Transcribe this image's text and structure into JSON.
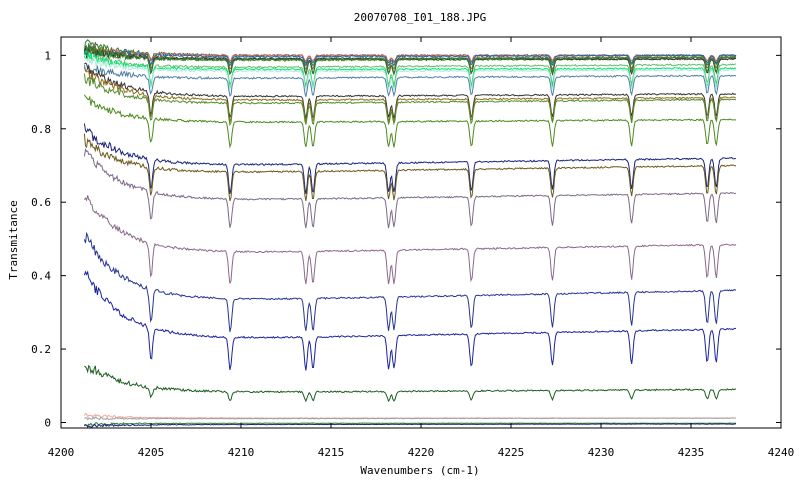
{
  "chart_data": {
    "type": "line",
    "title": "20070708_I01_188.JPG",
    "xlabel": "Wavenumbers (cm-1)",
    "ylabel": "Transmitance",
    "xlim": [
      4200,
      4240
    ],
    "ylim": [
      -0.015,
      1.05
    ],
    "x_ticks": [
      4200,
      4205,
      4210,
      4215,
      4220,
      4225,
      4230,
      4235,
      4240
    ],
    "y_ticks": [
      0,
      0.2,
      0.4,
      0.6,
      0.8,
      1
    ],
    "x_tick_labels": [
      "4200",
      "4205",
      "4210",
      "4215",
      "4220",
      "4225",
      "4230",
      "4235",
      "4240"
    ],
    "y_tick_labels": [
      "0",
      "0.2",
      "0.4",
      "0.6",
      "0.8",
      "1"
    ],
    "grid": false,
    "legend": "none",
    "x_range_of_data": [
      4201.3,
      4237.5
    ],
    "absorption_lines": [
      4205.0,
      4209.4,
      4213.6,
      4214.0,
      4218.2,
      4218.5,
      4222.8,
      4227.3,
      4231.7,
      4235.9,
      4236.4
    ],
    "series": [
      {
        "color": "#2e7d32",
        "start": 1.03,
        "level": 1.0,
        "end": 1.0,
        "depth": 0.02
      },
      {
        "color": "#e06060",
        "start": 1.02,
        "level": 1.0,
        "end": 1.0,
        "depth": 0.015
      },
      {
        "color": "#1565c0",
        "start": 1.02,
        "level": 0.995,
        "end": 1.0,
        "depth": 0.025
      },
      {
        "color": "#8d6e1a",
        "start": 1.02,
        "level": 0.99,
        "end": 0.995,
        "depth": 0.03
      },
      {
        "color": "#558b2f",
        "start": 1.02,
        "level": 0.985,
        "end": 0.99,
        "depth": 0.035
      },
      {
        "color": "#333333",
        "start": 1.01,
        "level": 0.99,
        "end": 0.99,
        "depth": 0.04
      },
      {
        "color": "#2e7d32",
        "start": 1.02,
        "level": 0.985,
        "end": 0.995,
        "depth": 0.04
      },
      {
        "color": "#66bb6a",
        "start": 1.0,
        "level": 0.965,
        "end": 0.975,
        "depth": 0.05
      },
      {
        "color": "#00e676",
        "start": 1.0,
        "level": 0.96,
        "end": 0.965,
        "depth": 0.05
      },
      {
        "color": "#b2ebd8",
        "start": 0.99,
        "level": 0.955,
        "end": 0.96,
        "depth": 0.05
      },
      {
        "color": "#4f7fa6",
        "start": 0.97,
        "level": 0.935,
        "end": 0.945,
        "depth": 0.05
      },
      {
        "color": "#333333",
        "start": 0.97,
        "level": 0.885,
        "end": 0.895,
        "depth": 0.06
      },
      {
        "color": "#8d6e1a",
        "start": 0.96,
        "level": 0.875,
        "end": 0.885,
        "depth": 0.06
      },
      {
        "color": "#558b2f",
        "start": 0.94,
        "level": 0.865,
        "end": 0.88,
        "depth": 0.06
      },
      {
        "color": "#4c8a1f",
        "start": 0.88,
        "level": 0.815,
        "end": 0.825,
        "depth": 0.07
      },
      {
        "color": "#1a237e",
        "start": 0.8,
        "level": 0.695,
        "end": 0.72,
        "depth": 0.08
      },
      {
        "color": "#6b5a1a",
        "start": 0.77,
        "level": 0.675,
        "end": 0.7,
        "depth": 0.08
      },
      {
        "color": "#7b6a8a",
        "start": 0.74,
        "level": 0.6,
        "end": 0.625,
        "depth": 0.08
      },
      {
        "color": "#8a6a8a",
        "start": 0.62,
        "level": 0.455,
        "end": 0.485,
        "depth": 0.09
      },
      {
        "color": "#283593",
        "start": 0.51,
        "level": 0.325,
        "end": 0.36,
        "depth": 0.09
      },
      {
        "color": "#1a23a0",
        "start": 0.41,
        "level": 0.22,
        "end": 0.255,
        "depth": 0.09
      },
      {
        "color": "#1b5e20",
        "start": 0.16,
        "level": 0.08,
        "end": 0.09,
        "depth": 0.025
      },
      {
        "color": "#f4a6a6",
        "start": 0.02,
        "level": 0.012,
        "end": 0.012,
        "depth": 0.0
      },
      {
        "color": "#9e9e9e",
        "start": 0.012,
        "level": 0.01,
        "end": 0.012,
        "depth": 0.0
      },
      {
        "color": "#2e7d32",
        "start": -0.005,
        "level": -0.002,
        "end": -0.002,
        "depth": 0.0
      },
      {
        "color": "#1a237e",
        "start": -0.01,
        "level": -0.006,
        "end": -0.004,
        "depth": 0.0
      }
    ]
  }
}
